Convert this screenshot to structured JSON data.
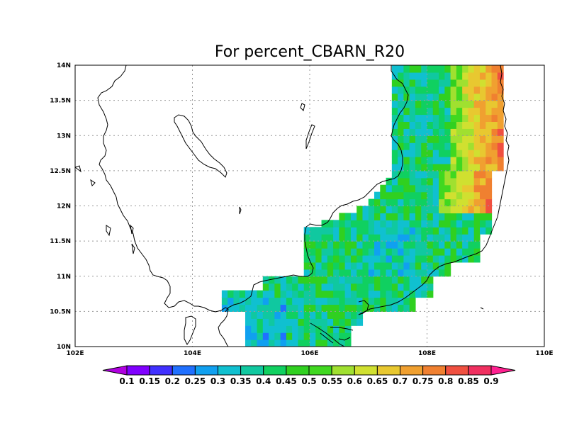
{
  "title": "For percent_CBARN_R20",
  "x_axis": {
    "tick_labels": [
      "102E",
      "104E",
      "106E",
      "108E",
      "110E"
    ],
    "values": [
      102,
      104,
      106,
      108,
      110
    ],
    "range": [
      102,
      110
    ]
  },
  "y_axis": {
    "tick_labels": [
      "10N",
      "10.5N",
      "11N",
      "11.5N",
      "12N",
      "12.5N",
      "13N",
      "13.5N",
      "14N"
    ],
    "values": [
      10,
      10.5,
      11,
      11.5,
      12,
      12.5,
      13,
      13.5,
      14
    ],
    "range": [
      10,
      14
    ]
  },
  "grid": "dotted",
  "colorbar": {
    "labels": [
      "0.1",
      "0.15",
      "0.2",
      "0.25",
      "0.3",
      "0.35",
      "0.4",
      "0.45",
      "0.5",
      "0.55",
      "0.6",
      "0.65",
      "0.7",
      "0.75",
      "0.8",
      "0.85",
      "0.9"
    ],
    "colors": [
      "#b000e0",
      "#8000ff",
      "#4030ff",
      "#2070ff",
      "#10a0f0",
      "#10c0d0",
      "#10c8a0",
      "#10d060",
      "#30d020",
      "#40d820",
      "#a0e030",
      "#d0e030",
      "#e8c830",
      "#f0a030",
      "#f08030",
      "#f05040",
      "#f03060",
      "#ff2090"
    ]
  },
  "map": {
    "type": "gridded field",
    "region": "southern Vietnam / Cambodia coast",
    "data_extent": {
      "lon": [
        104.5,
        109.3
      ],
      "lat": [
        10.0,
        14.0
      ]
    }
  }
}
